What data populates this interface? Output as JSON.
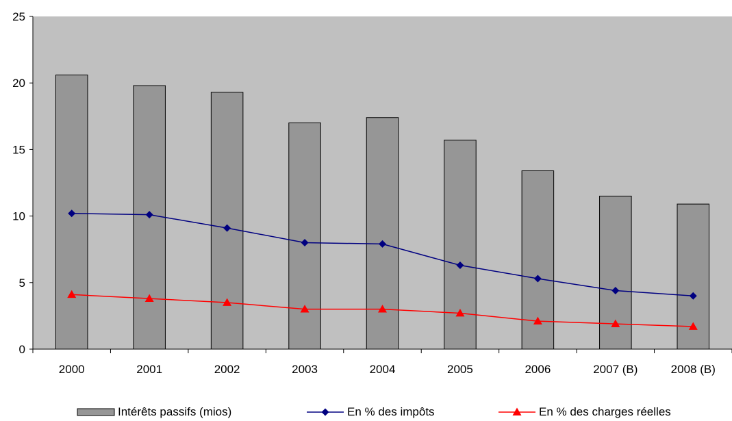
{
  "chart_data": {
    "type": "bar",
    "categories": [
      "2000",
      "2001",
      "2002",
      "2003",
      "2004",
      "2005",
      "2006",
      "2007 (B)",
      "2008 (B)"
    ],
    "ylim": [
      0,
      25
    ],
    "yticks": [
      0,
      5,
      10,
      15,
      20,
      25
    ],
    "grid": false,
    "plot_background": "#c0c0c0",
    "legend_position": "bottom",
    "series": [
      {
        "name": "Intérêts passifs (mios)",
        "type": "bar",
        "color": "#969696",
        "values": [
          20.6,
          19.8,
          19.3,
          17.0,
          17.4,
          15.7,
          13.4,
          11.5,
          10.9
        ]
      },
      {
        "name": "En % des impôts",
        "type": "line",
        "marker": "diamond",
        "color": "#000080",
        "values": [
          10.2,
          10.1,
          9.1,
          8.0,
          7.9,
          6.3,
          5.3,
          4.4,
          4.0
        ]
      },
      {
        "name": "En % des charges réelles",
        "type": "line",
        "marker": "triangle",
        "color": "#ff0000",
        "values": [
          4.1,
          3.8,
          3.5,
          3.0,
          3.0,
          2.7,
          2.1,
          1.9,
          1.7
        ]
      }
    ]
  }
}
